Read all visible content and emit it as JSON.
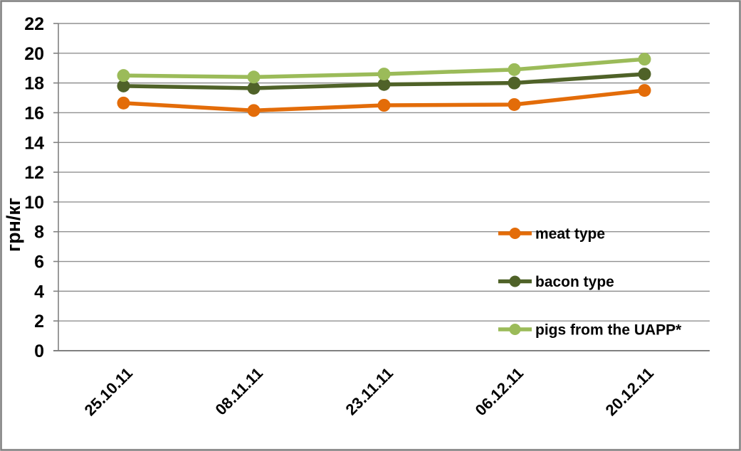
{
  "chart_data": {
    "type": "line",
    "title": "",
    "xlabel": "",
    "ylabel": "грн/кг",
    "ylim": [
      0,
      22
    ],
    "ytick_step": 2,
    "grid": true,
    "legend_position": "inside-right-middle",
    "categories": [
      "25.10.11",
      "08.11.11",
      "23.11.11",
      "06.12.11",
      "20.12.11"
    ],
    "series": [
      {
        "name": "meat type",
        "color": "#E36C09",
        "values": [
          16.65,
          16.15,
          16.5,
          16.55,
          17.5
        ]
      },
      {
        "name": "bacon type",
        "color": "#4F6228",
        "values": [
          17.8,
          17.65,
          17.9,
          18.0,
          18.6
        ]
      },
      {
        "name": "pigs from the UAPP*",
        "color": "#9BBB59",
        "values": [
          18.5,
          18.4,
          18.6,
          18.9,
          19.6
        ]
      }
    ]
  },
  "style_colors": {
    "background": "#FFFFFF",
    "frame_border": "#7F7F7F",
    "gridline": "#909090",
    "axis": "#808080",
    "text": "#000000"
  }
}
